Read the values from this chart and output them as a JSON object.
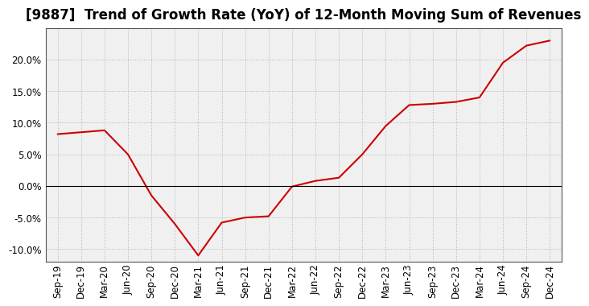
{
  "title": "[9887]  Trend of Growth Rate (YoY) of 12-Month Moving Sum of Revenues",
  "line_color": "#cc0000",
  "background_color": "#ffffff",
  "plot_bg_color": "#f0f0f0",
  "grid_color": "#999999",
  "x_labels": [
    "Sep-19",
    "Dec-19",
    "Mar-20",
    "Jun-20",
    "Sep-20",
    "Dec-20",
    "Mar-21",
    "Jun-21",
    "Sep-21",
    "Dec-21",
    "Mar-22",
    "Jun-22",
    "Sep-22",
    "Dec-22",
    "Mar-23",
    "Jun-23",
    "Sep-23",
    "Dec-23",
    "Mar-24",
    "Jun-24",
    "Sep-24",
    "Dec-24"
  ],
  "y_values": [
    8.2,
    8.5,
    8.8,
    5.0,
    -1.5,
    -6.0,
    -11.0,
    -5.8,
    -5.0,
    -4.8,
    -0.1,
    0.8,
    1.3,
    5.0,
    9.5,
    12.8,
    13.0,
    13.3,
    14.0,
    19.5,
    22.2,
    23.0
  ],
  "ylim": [
    -12,
    25
  ],
  "yticks": [
    -10,
    -5,
    0,
    5,
    10,
    15,
    20
  ],
  "title_fontsize": 12,
  "tick_fontsize": 8.5
}
